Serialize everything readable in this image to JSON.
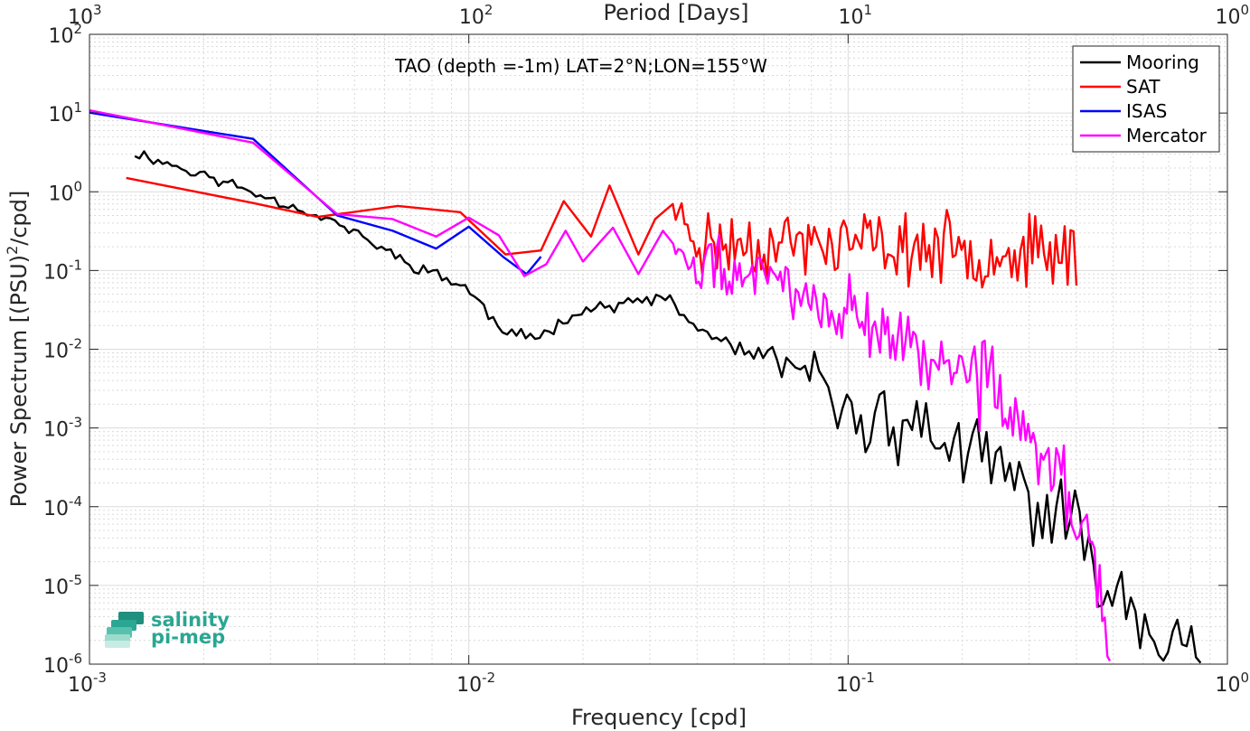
{
  "chart_data": {
    "type": "line",
    "annotation": "TAO (depth =-1m) LAT=2°N;LON=155°W",
    "xlabel": "Frequency [cpd]",
    "ylabel_base": "Power Spectrum [(PSU)",
    "ylabel_sup": "2",
    "ylabel_tail": "/cpd]",
    "top_axis_label": "Period [Days]",
    "x_scale": "log",
    "y_scale": "log",
    "xlim": [
      0.001,
      1
    ],
    "ylim": [
      1e-06,
      100
    ],
    "grid": true,
    "minor_grid": true,
    "legend_position": "top-right",
    "x_ticks": [
      {
        "value": 0.001,
        "base": "10",
        "exp": "-3"
      },
      {
        "value": 0.01,
        "base": "10",
        "exp": "-2"
      },
      {
        "value": 0.1,
        "base": "10",
        "exp": "-1"
      },
      {
        "value": 1,
        "base": "10",
        "exp": "0"
      }
    ],
    "top_ticks": [
      {
        "value": 0.001,
        "base": "10",
        "exp": "3"
      },
      {
        "value": 0.01,
        "base": "10",
        "exp": "2"
      },
      {
        "value": 0.1,
        "base": "10",
        "exp": "1"
      },
      {
        "value": 1,
        "base": "10",
        "exp": "0"
      }
    ],
    "y_ticks": [
      {
        "value": 100,
        "base": "10",
        "exp": "2"
      },
      {
        "value": 10,
        "base": "10",
        "exp": "1"
      },
      {
        "value": 1,
        "base": "10",
        "exp": "0"
      },
      {
        "value": 0.1,
        "base": "10",
        "exp": "-1"
      },
      {
        "value": 0.01,
        "base": "10",
        "exp": "-2"
      },
      {
        "value": 0.001,
        "base": "10",
        "exp": "-3"
      },
      {
        "value": 0.0001,
        "base": "10",
        "exp": "-4"
      },
      {
        "value": 1e-05,
        "base": "10",
        "exp": "-5"
      },
      {
        "value": 1e-06,
        "base": "10",
        "exp": "-6"
      }
    ],
    "series": [
      {
        "name": "Mooring",
        "color": "#000000",
        "gen": {
          "x_start": 0.00128,
          "x_end": 0.85,
          "n": 230,
          "seed": 11,
          "noise": [
            [
              0.05,
              0.08
            ],
            [
              0.1,
              0.3
            ],
            [
              0.3,
              0.5
            ],
            [
              1,
              0.55
            ]
          ],
          "control": [
            [
              0.00128,
              3.3
            ],
            [
              0.0027,
              1.0
            ],
            [
              0.0045,
              0.4
            ],
            [
              0.0068,
              0.13
            ],
            [
              0.0098,
              0.062
            ],
            [
              0.0125,
              0.0155
            ],
            [
              0.0155,
              0.0145
            ],
            [
              0.019,
              0.03
            ],
            [
              0.023,
              0.035
            ],
            [
              0.033,
              0.045
            ],
            [
              0.04,
              0.018
            ],
            [
              0.05,
              0.011
            ],
            [
              0.06,
              0.0065
            ],
            [
              0.08,
              0.005
            ],
            [
              0.1,
              0.0014
            ],
            [
              0.15,
              0.0011
            ],
            [
              0.2,
              0.0005
            ],
            [
              0.25,
              0.0003
            ],
            [
              0.3,
              0.00012
            ],
            [
              0.4,
              4.5e-05
            ],
            [
              0.5,
              1e-05
            ],
            [
              0.7,
              2.5e-06
            ],
            [
              0.85,
              8e-07
            ]
          ]
        }
      },
      {
        "name": "SAT",
        "color": "#ff0000",
        "gen": {
          "x_start": 0.00125,
          "x_end": 0.4,
          "n": 150,
          "seed": 23,
          "noise": [
            [
              0.035,
              0
            ],
            [
              0.04,
              0.3
            ],
            [
              0.4,
              0.45
            ]
          ],
          "control": [
            [
              0.00125,
              1.5
            ],
            [
              0.0027,
              0.72
            ],
            [
              0.004,
              0.48
            ],
            [
              0.0065,
              0.66
            ],
            [
              0.0095,
              0.55
            ],
            [
              0.0125,
              0.16
            ],
            [
              0.0155,
              0.18
            ],
            [
              0.0178,
              0.76
            ],
            [
              0.021,
              0.27
            ],
            [
              0.0235,
              1.2
            ],
            [
              0.028,
              0.16
            ],
            [
              0.031,
              0.45
            ],
            [
              0.0345,
              0.7
            ],
            [
              0.04,
              0.22
            ],
            [
              0.1,
              0.22
            ],
            [
              0.2,
              0.18
            ],
            [
              0.3,
              0.17
            ],
            [
              0.4,
              0.17
            ]
          ]
        }
      },
      {
        "name": "ISAS",
        "color": "#0000ff",
        "gen": {
          "x_start": 0.0009,
          "x_end": 0.0155,
          "n": 9,
          "seed": 31,
          "noise": [
            [
              1,
              0
            ]
          ],
          "control": [
            [
              0.0009,
              11
            ],
            [
              0.0027,
              4.7
            ],
            [
              0.0045,
              0.5
            ],
            [
              0.0063,
              0.32
            ],
            [
              0.0082,
              0.19
            ],
            [
              0.01,
              0.36
            ],
            [
              0.0123,
              0.15
            ],
            [
              0.0142,
              0.09
            ],
            [
              0.0155,
              0.15
            ]
          ]
        }
      },
      {
        "name": "Mercator",
        "color": "#ff00ff",
        "gen": {
          "x_start": 0.0009,
          "x_end": 0.49,
          "n": 190,
          "seed": 47,
          "noise": [
            [
              0.035,
              0
            ],
            [
              0.04,
              0.25
            ],
            [
              0.2,
              0.45
            ],
            [
              0.49,
              0.6
            ]
          ],
          "control": [
            [
              0.0009,
              12
            ],
            [
              0.0027,
              4.2
            ],
            [
              0.0045,
              0.52
            ],
            [
              0.0063,
              0.45
            ],
            [
              0.0082,
              0.27
            ],
            [
              0.01,
              0.47
            ],
            [
              0.012,
              0.28
            ],
            [
              0.014,
              0.085
            ],
            [
              0.016,
              0.12
            ],
            [
              0.018,
              0.32
            ],
            [
              0.02,
              0.13
            ],
            [
              0.022,
              0.22
            ],
            [
              0.024,
              0.35
            ],
            [
              0.028,
              0.09
            ],
            [
              0.0325,
              0.32
            ],
            [
              0.04,
              0.09
            ],
            [
              0.05,
              0.1
            ],
            [
              0.07,
              0.065
            ],
            [
              0.1,
              0.03
            ],
            [
              0.13,
              0.015
            ],
            [
              0.16,
              0.008
            ],
            [
              0.2,
              0.006
            ],
            [
              0.25,
              0.0025
            ],
            [
              0.3,
              0.0007
            ],
            [
              0.35,
              0.00035
            ],
            [
              0.4,
              0.0001
            ],
            [
              0.45,
              2.5e-05
            ],
            [
              0.49,
              8e-07
            ]
          ]
        }
      }
    ]
  },
  "logo": {
    "line1": "salinity",
    "line2": "pi-mep",
    "color": "#2aa692"
  }
}
